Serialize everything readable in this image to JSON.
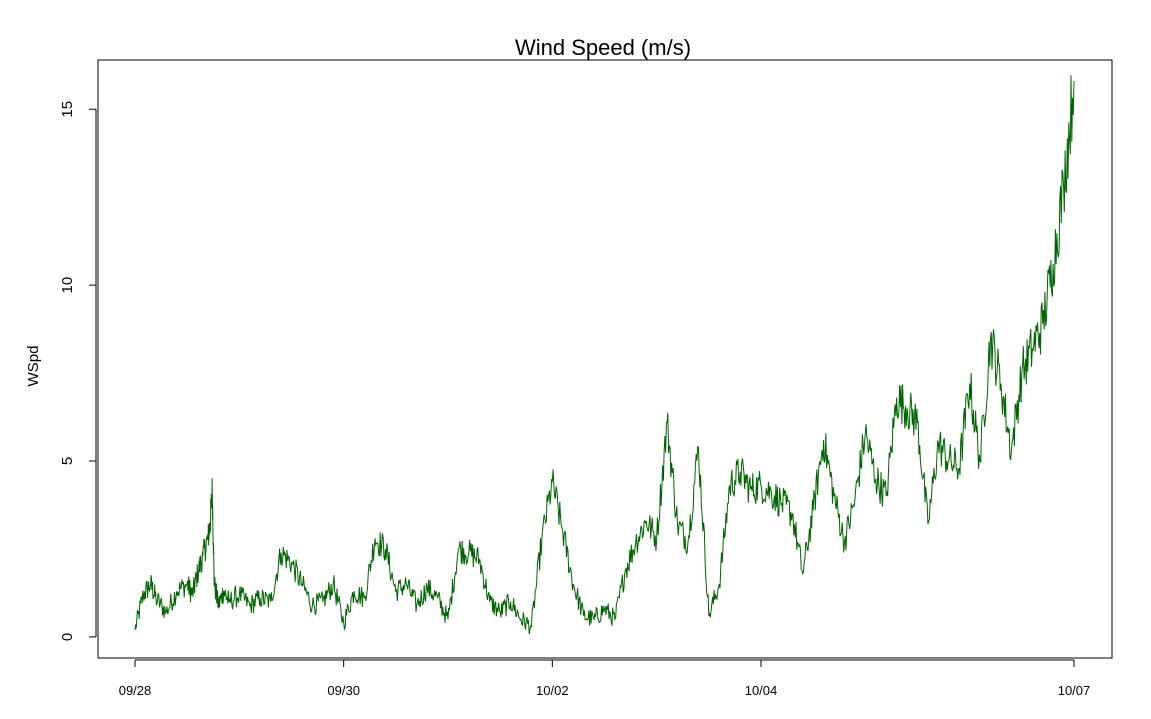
{
  "chart_data": {
    "type": "line",
    "title": "Wind Speed (m/s)",
    "xlabel": "",
    "ylabel": "WSpd",
    "x_ticks": [
      "09/28",
      "09/30",
      "10/02",
      "10/04",
      "10/07"
    ],
    "x_range": [
      "09/28 00:00",
      "10/07 00:00"
    ],
    "y_ticks": [
      "0",
      "5",
      "10",
      "15"
    ],
    "ylim": [
      -0.6,
      16.4
    ],
    "grid": false,
    "line_color": "#006400",
    "series": [
      {
        "x_days": [
          0,
          0.08,
          0.15,
          0.2,
          0.3,
          0.4,
          0.5,
          0.55,
          0.6,
          0.65,
          0.7,
          0.72,
          0.74,
          0.76,
          0.8,
          0.85,
          0.9,
          1.0,
          1.1,
          1.2,
          1.3,
          1.4,
          1.5,
          1.6,
          1.7,
          1.8,
          1.9,
          2.0,
          2.1,
          2.2,
          2.3,
          2.4,
          2.5,
          2.6,
          2.7,
          2.8,
          2.9,
          3.0,
          3.1,
          3.2,
          3.3,
          3.4,
          3.5,
          3.6,
          3.7,
          3.8,
          3.9,
          4.0,
          4.1,
          4.2,
          4.3,
          4.4,
          4.5,
          4.6,
          4.7,
          4.8,
          4.9,
          5.0,
          5.1,
          5.2,
          5.3,
          5.4,
          5.5,
          5.6,
          5.7,
          5.8,
          5.9,
          6.0,
          6.1,
          6.2,
          6.3,
          6.4,
          6.5,
          6.6,
          6.7,
          6.8,
          6.9,
          7.0,
          7.1,
          7.2,
          7.3,
          7.4,
          7.5,
          7.6,
          7.7,
          7.8,
          7.9,
          8.0,
          8.1,
          8.2,
          8.3,
          8.4,
          8.5,
          8.6,
          8.7,
          8.8,
          8.9,
          9.0
        ],
        "values": [
          0.2,
          1.2,
          1.5,
          1.1,
          0.7,
          1.3,
          1.5,
          1.2,
          1.8,
          2.3,
          2.8,
          3.2,
          4.2,
          1.5,
          0.9,
          1.3,
          1.0,
          1.2,
          0.9,
          1.1,
          1.0,
          2.4,
          2.1,
          1.5,
          0.9,
          1.0,
          1.5,
          0.4,
          1.3,
          1.1,
          2.8,
          2.5,
          1.3,
          1.5,
          0.9,
          1.4,
          1.1,
          0.5,
          2.5,
          2.4,
          2.2,
          1.0,
          0.7,
          1.0,
          0.5,
          0.3,
          2.8,
          4.4,
          3.0,
          1.5,
          0.6,
          0.5,
          0.8,
          0.5,
          1.9,
          2.7,
          3.3,
          2.8,
          6.1,
          3.2,
          2.7,
          5.4,
          0.6,
          1.5,
          4.3,
          4.7,
          4.2,
          4.3,
          4.1,
          3.8,
          3.5,
          1.8,
          3.6,
          5.6,
          4.0,
          2.7,
          3.9,
          5.8,
          4.5,
          4.0,
          6.8,
          6.5,
          6.1,
          3.2,
          5.5,
          5.0,
          4.8,
          7.2,
          5.0,
          8.5,
          7.2,
          5.3,
          7.5,
          8.2,
          8.9,
          10.6,
          12.8,
          15.8
        ]
      }
    ]
  }
}
